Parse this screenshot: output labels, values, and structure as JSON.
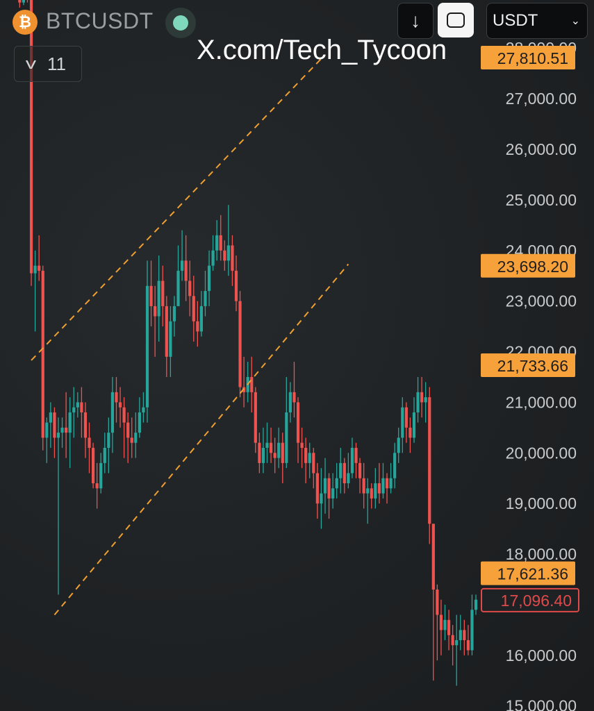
{
  "header": {
    "coin_glyph": "₿",
    "symbol": "BTCUSDT",
    "download_glyph": "↓",
    "currency": "USDT",
    "currency_chevron": "⌄",
    "watermark": "X.com/Tech_Tycoon",
    "indicator_count": "11",
    "indicator_chevron": "v"
  },
  "colors": {
    "up": "#26a69a",
    "down": "#ef5350",
    "badge": "#f7a13b",
    "current_border": "#e04a4a",
    "channel": "#f0a030",
    "axis_text": "#c8cacc"
  },
  "chart_data": {
    "type": "candlestick",
    "title": "",
    "xlabel": "",
    "ylabel": "",
    "ylim": [
      14900,
      28950
    ],
    "y_ticks": [
      "28,000.00",
      "27,000.00",
      "26,000.00",
      "25,000.00",
      "24,000.00",
      "23,000.00",
      "22,000.00",
      "21,000.00",
      "20,000.00",
      "19,000.00",
      "18,000.00",
      "16,000.00",
      "15,000.00"
    ],
    "y_tick_values": [
      28000,
      27000,
      26000,
      25000,
      24000,
      23000,
      22000,
      21000,
      20000,
      19000,
      18000,
      16000,
      15000
    ],
    "price_badges": [
      {
        "label": "27,810.51",
        "value": 27810.51,
        "style": "filled"
      },
      {
        "label": "23,698.20",
        "value": 23698.2,
        "style": "filled"
      },
      {
        "label": "21,733.66",
        "value": 21733.66,
        "style": "filled"
      },
      {
        "label": "17,621.36",
        "value": 17621.36,
        "style": "filled"
      },
      {
        "label": "17,096.40",
        "value": 17096.4,
        "style": "outline"
      }
    ],
    "candle_count": 120,
    "channel_lines": [
      {
        "from": [
          4,
          21830
        ],
        "to": [
          80,
          27870
        ]
      },
      {
        "from": [
          10,
          16800
        ],
        "to": [
          86,
          23730
        ]
      }
    ],
    "candles": [
      [
        29050,
        29000,
        29150,
        28950
      ],
      [
        29000,
        28900,
        29050,
        28800
      ],
      [
        28900,
        29000,
        29100,
        28850
      ],
      [
        29000,
        28950,
        29100,
        28900
      ],
      [
        28950,
        23550,
        29000,
        23300
      ],
      [
        23550,
        23700,
        24000,
        22400
      ],
      [
        23700,
        23600,
        24300,
        23400
      ],
      [
        23600,
        20300,
        23700,
        20050
      ],
      [
        20300,
        20600,
        20700,
        19800
      ],
      [
        20600,
        20800,
        21000,
        20100
      ],
      [
        20800,
        20300,
        20900,
        19900
      ],
      [
        20300,
        20400,
        20700,
        17200
      ],
      [
        20400,
        20500,
        20700,
        20100
      ],
      [
        20500,
        20400,
        21200,
        19900
      ],
      [
        20400,
        20800,
        21100,
        19700
      ],
      [
        20800,
        20900,
        21300,
        20300
      ],
      [
        20900,
        21000,
        21200,
        20700
      ],
      [
        21000,
        20800,
        21300,
        20300
      ],
      [
        20800,
        20300,
        21000,
        19900
      ],
      [
        20300,
        20100,
        20600,
        19600
      ],
      [
        20100,
        19400,
        20200,
        19300
      ],
      [
        19400,
        19300,
        19800,
        18900
      ],
      [
        19300,
        19800,
        20000,
        19200
      ],
      [
        19800,
        20100,
        20400,
        19600
      ],
      [
        20100,
        20400,
        20700,
        19600
      ],
      [
        20400,
        21200,
        21500,
        20000
      ],
      [
        21200,
        21000,
        21500,
        20600
      ],
      [
        21000,
        20900,
        21300,
        20500
      ],
      [
        20900,
        20600,
        21100,
        19900
      ],
      [
        20600,
        20300,
        20800,
        19800
      ],
      [
        20300,
        20200,
        20700,
        19900
      ],
      [
        20200,
        20400,
        20800,
        19900
      ],
      [
        20400,
        20800,
        21100,
        20300
      ],
      [
        20800,
        20900,
        21200,
        20600
      ],
      [
        20900,
        23300,
        23800,
        20600
      ],
      [
        23300,
        22900,
        23800,
        22500
      ],
      [
        22900,
        22700,
        23300,
        21900
      ],
      [
        22700,
        23400,
        23900,
        22200
      ],
      [
        23400,
        22900,
        23700,
        22500
      ],
      [
        22900,
        21900,
        23100,
        21500
      ],
      [
        21900,
        22600,
        22900,
        21500
      ],
      [
        22600,
        22900,
        23100,
        22300
      ],
      [
        22900,
        23600,
        24100,
        22900
      ],
      [
        23600,
        23800,
        24400,
        23400
      ],
      [
        23800,
        23400,
        24300,
        23000
      ],
      [
        23400,
        23100,
        23800,
        22700
      ],
      [
        23100,
        22600,
        23500,
        22200
      ],
      [
        22600,
        22400,
        23000,
        22100
      ],
      [
        22400,
        22900,
        23200,
        22300
      ],
      [
        22900,
        23200,
        23600,
        22700
      ],
      [
        23200,
        23700,
        24000,
        22900
      ],
      [
        23700,
        24000,
        24300,
        23600
      ],
      [
        24000,
        24300,
        24600,
        23800
      ],
      [
        24300,
        24000,
        24700,
        23800
      ],
      [
        24000,
        23800,
        24200,
        23600
      ],
      [
        23800,
        24100,
        24900,
        23500
      ],
      [
        24100,
        23600,
        24300,
        23300
      ],
      [
        23600,
        23000,
        23900,
        22800
      ],
      [
        23000,
        21300,
        23200,
        21100
      ],
      [
        21300,
        21200,
        21900,
        20900
      ],
      [
        21200,
        21500,
        21800,
        21000
      ],
      [
        21500,
        21200,
        21900,
        20800
      ],
      [
        21200,
        20200,
        21300,
        20000
      ],
      [
        20200,
        19800,
        20400,
        19600
      ],
      [
        19800,
        20100,
        20500,
        19600
      ],
      [
        20100,
        20200,
        20600,
        19800
      ],
      [
        20200,
        20000,
        20500,
        19800
      ],
      [
        20000,
        19900,
        20300,
        19600
      ],
      [
        19900,
        20200,
        20500,
        19700
      ],
      [
        20200,
        19800,
        20400,
        19400
      ],
      [
        19800,
        20800,
        21500,
        19700
      ],
      [
        20800,
        21200,
        21400,
        20600
      ],
      [
        21200,
        21000,
        21800,
        20700
      ],
      [
        21000,
        20200,
        21100,
        19800
      ],
      [
        20200,
        20100,
        20500,
        19700
      ],
      [
        20100,
        19800,
        20300,
        19400
      ],
      [
        19800,
        20000,
        20200,
        19500
      ],
      [
        20000,
        19600,
        20100,
        19300
      ],
      [
        19600,
        19000,
        19800,
        18700
      ],
      [
        19000,
        19200,
        19700,
        18500
      ],
      [
        19200,
        19500,
        19900,
        18800
      ],
      [
        19500,
        19100,
        19600,
        18700
      ],
      [
        19100,
        19300,
        19600,
        18900
      ],
      [
        19300,
        19500,
        19800,
        19100
      ],
      [
        19500,
        19800,
        20100,
        19200
      ],
      [
        19800,
        19400,
        19900,
        19200
      ],
      [
        19400,
        19600,
        20000,
        19300
      ],
      [
        19600,
        20100,
        20300,
        19500
      ],
      [
        20100,
        19800,
        20200,
        19500
      ],
      [
        19800,
        19500,
        19900,
        19200
      ],
      [
        19500,
        19200,
        19800,
        18900
      ],
      [
        19200,
        19300,
        19500,
        18600
      ],
      [
        19300,
        19100,
        19400,
        18900
      ],
      [
        19100,
        19400,
        19700,
        18900
      ],
      [
        19400,
        19200,
        19800,
        19000
      ],
      [
        19200,
        19500,
        19800,
        19100
      ],
      [
        19500,
        19300,
        19600,
        19000
      ],
      [
        19300,
        19500,
        19800,
        19200
      ],
      [
        19500,
        20000,
        20200,
        19300
      ],
      [
        20000,
        20300,
        20500,
        19800
      ],
      [
        20300,
        20900,
        21100,
        20000
      ],
      [
        20900,
        20500,
        21000,
        20200
      ],
      [
        20500,
        20300,
        20700,
        20000
      ],
      [
        20300,
        20800,
        21100,
        20200
      ],
      [
        20800,
        21200,
        21500,
        20600
      ],
      [
        21200,
        21000,
        21500,
        20700
      ],
      [
        21000,
        21100,
        21400,
        20600
      ],
      [
        21100,
        18600,
        21300,
        18200
      ],
      [
        18600,
        17300,
        18600,
        15500
      ],
      [
        17300,
        16800,
        17400,
        15900
      ],
      [
        16800,
        16500,
        17100,
        16000
      ],
      [
        16500,
        16700,
        17000,
        16300
      ],
      [
        16700,
        16400,
        16900,
        16100
      ],
      [
        16400,
        16200,
        16600,
        15800
      ],
      [
        16200,
        16300,
        16800,
        15400
      ],
      [
        16300,
        16500,
        16800,
        16100
      ],
      [
        16500,
        16300,
        16700,
        16000
      ],
      [
        16300,
        16100,
        16600,
        16000
      ],
      [
        16100,
        16900,
        17200,
        16000
      ],
      [
        16900,
        17100,
        17200,
        16800
      ]
    ]
  }
}
